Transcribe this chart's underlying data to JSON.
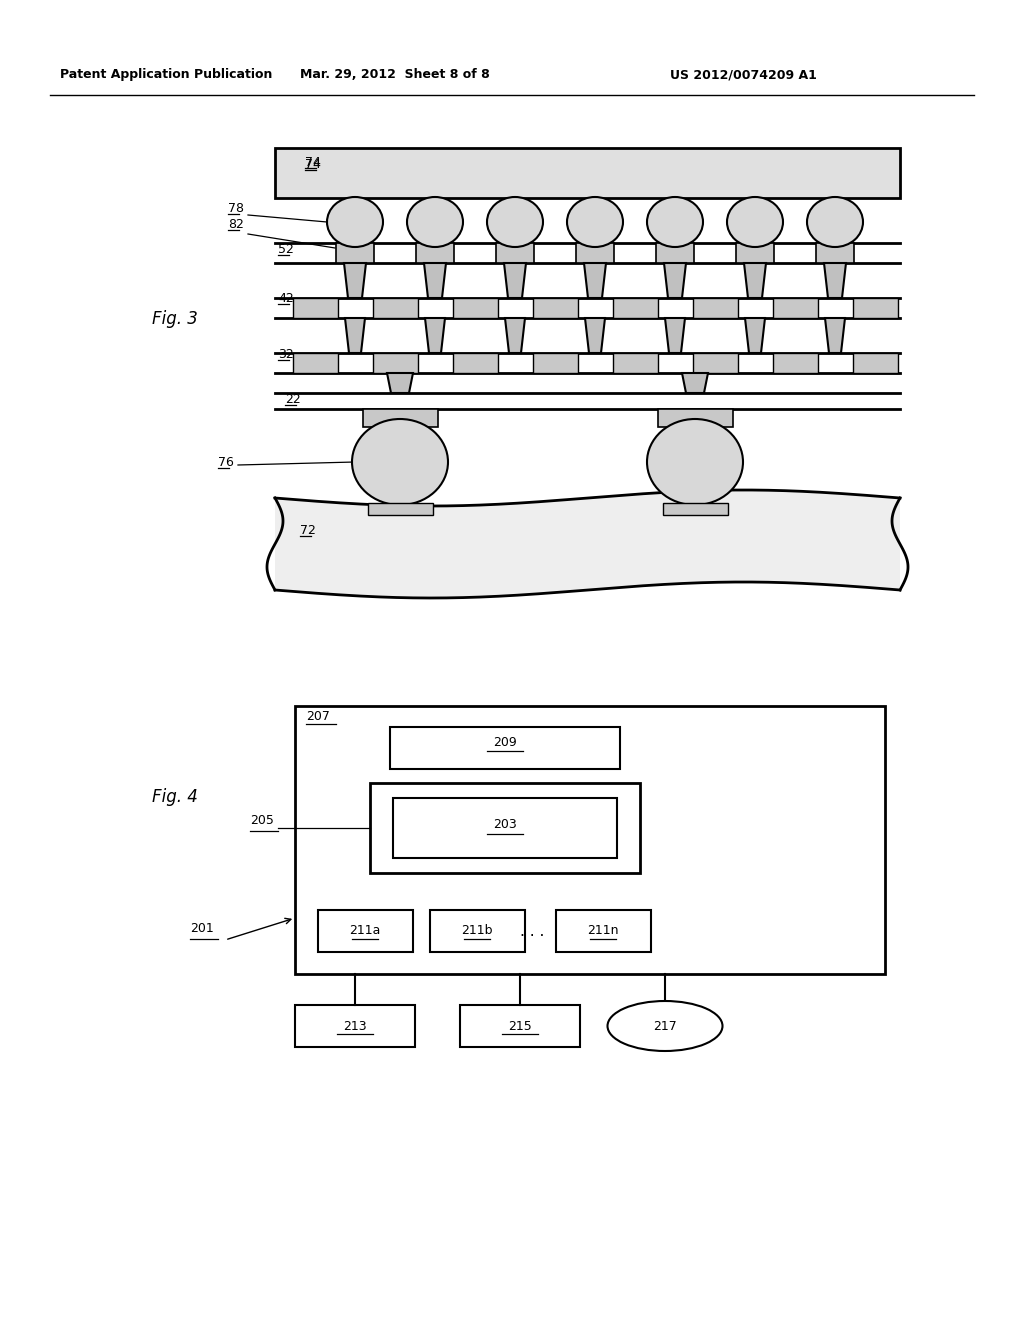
{
  "bg_color": "#ffffff",
  "header_left": "Patent Application Publication",
  "header_center": "Mar. 29, 2012  Sheet 8 of 8",
  "header_right": "US 2012/0074209 A1",
  "fig3_label": "Fig. 3",
  "fig4_label": "Fig. 4"
}
